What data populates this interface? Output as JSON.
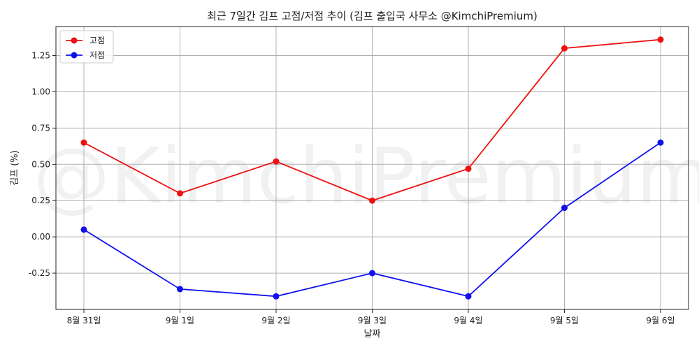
{
  "chart_data": {
    "type": "line",
    "title": "최근 7일간 김프 고점/저점 추이 (김프 출입국 사무소 @KimchiPremium)",
    "xlabel": "날짜",
    "ylabel": "김프 (%)",
    "categories": [
      "8월 31일",
      "9월 1일",
      "9월 2일",
      "9월 3일",
      "9월 4일",
      "9월 5일",
      "9월 6일"
    ],
    "series": [
      {
        "name": "고점",
        "color": "#ee1111",
        "values": [
          0.65,
          0.3,
          0.52,
          0.25,
          0.47,
          1.3,
          1.36
        ]
      },
      {
        "name": "저점",
        "color": "#1111ee",
        "values": [
          0.05,
          -0.36,
          -0.41,
          -0.25,
          -0.41,
          0.2,
          0.65
        ]
      }
    ],
    "ylim": [
      -0.5,
      1.45
    ],
    "yticks": [
      "-0.25",
      "0.00",
      "0.25",
      "0.50",
      "0.75",
      "1.00",
      "1.25"
    ],
    "grid": true,
    "legend_position": "top-left",
    "watermark": "@KimchiPremium"
  }
}
